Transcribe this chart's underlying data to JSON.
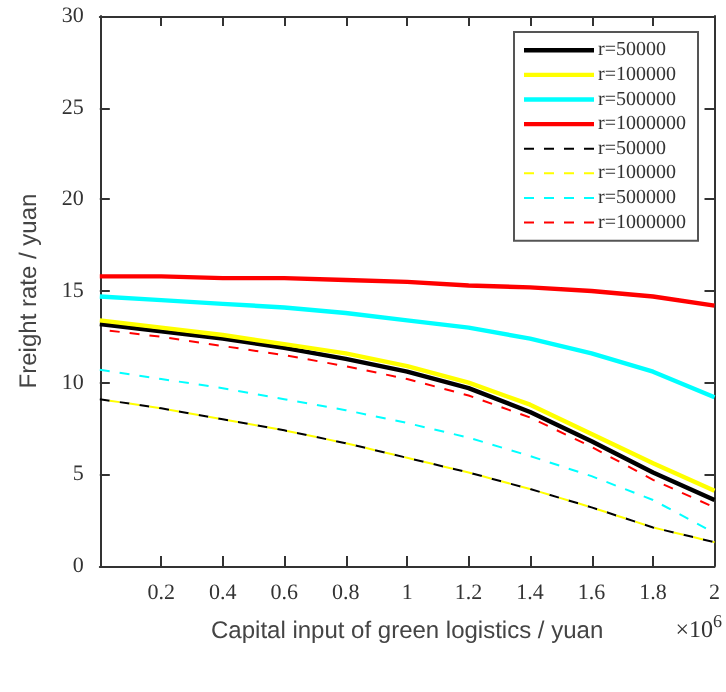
{
  "chart_data": {
    "type": "line",
    "xlabel": "Capital input of green logistics / yuan",
    "ylabel": "Freight rate / yuan",
    "annotations": [
      "×10$^{6}$"
    ],
    "x": [
      0,
      0.2,
      0.4,
      0.6,
      0.8,
      1,
      1.2,
      1.4,
      1.6,
      1.8,
      2
    ],
    "xlim": [
      0,
      2
    ],
    "xticks": [
      0.2,
      0.4,
      0.6,
      0.8,
      1,
      1.2,
      1.4,
      1.6,
      1.8,
      2
    ],
    "ylim": [
      0,
      30
    ],
    "yticks": [
      0,
      5,
      10,
      15,
      20,
      25,
      30
    ],
    "grid": false,
    "legend": "top right",
    "marker": "none",
    "series": [
      {
        "name": "r=50000",
        "color": "#000000",
        "line_style": "solid",
        "values": [
          13.2,
          12.8,
          12.4,
          11.9,
          11.3,
          10.6,
          9.7,
          8.4,
          6.8,
          5.1,
          3.6
        ]
      },
      {
        "name": "r=100000",
        "color": "#ffff00",
        "line_style": "solid",
        "values": [
          13.4,
          13.0,
          12.6,
          12.1,
          11.6,
          10.9,
          10.0,
          8.8,
          7.2,
          5.6,
          4.1
        ]
      },
      {
        "name": "r=500000",
        "color": "#00ffff",
        "line_style": "solid",
        "values": [
          14.7,
          14.5,
          14.3,
          14.1,
          13.8,
          13.4,
          13.0,
          12.4,
          11.6,
          10.6,
          9.2
        ]
      },
      {
        "name": "r=1000000",
        "color": "#ff0000",
        "line_style": "solid",
        "values": [
          15.8,
          15.8,
          15.7,
          15.7,
          15.6,
          15.5,
          15.3,
          15.2,
          15.0,
          14.7,
          14.2
        ]
      },
      {
        "name": "r=50000",
        "color": "#000000",
        "line_style": "dashed",
        "values": [
          9.1,
          8.6,
          8.0,
          7.4,
          6.7,
          5.9,
          5.1,
          4.2,
          3.2,
          2.1,
          1.3
        ]
      },
      {
        "name": "r=100000",
        "color": "#ffff00",
        "line_style": "dashed",
        "values": [
          9.1,
          8.6,
          8.0,
          7.4,
          6.7,
          5.9,
          5.1,
          4.2,
          3.2,
          2.1,
          1.3
        ]
      },
      {
        "name": "r=500000",
        "color": "#00ffff",
        "line_style": "dashed",
        "values": [
          10.7,
          10.2,
          9.7,
          9.1,
          8.5,
          7.8,
          7.0,
          6.0,
          4.9,
          3.6,
          1.8
        ]
      },
      {
        "name": "r=1000000",
        "color": "#ff0000",
        "line_style": "dashed",
        "values": [
          12.9,
          12.5,
          12.0,
          11.5,
          10.9,
          10.2,
          9.3,
          8.1,
          6.5,
          4.7,
          3.2
        ]
      }
    ]
  }
}
